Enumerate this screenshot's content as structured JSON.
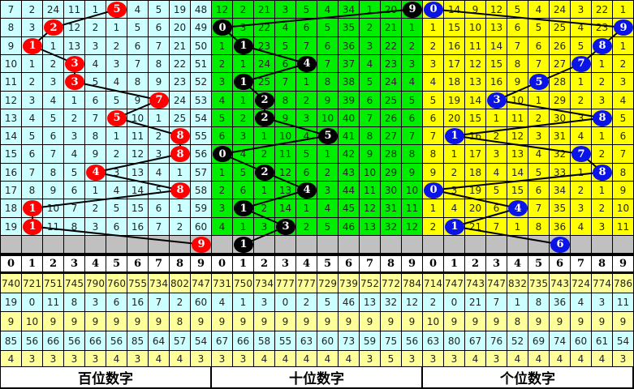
{
  "chart_data": {
    "type": "table",
    "header_digits": [
      "0",
      "1",
      "2",
      "3",
      "4",
      "5",
      "6",
      "7",
      "8",
      "9"
    ],
    "panels": [
      {
        "label": "百位数字",
        "bg": "#ccffff",
        "ball_color": "#ff0000",
        "rows": [
          [
            7,
            2,
            24,
            11,
            1,
            5,
            4,
            5,
            19,
            48
          ],
          [
            8,
            3,
            2,
            12,
            2,
            1,
            5,
            6,
            20,
            49
          ],
          [
            9,
            1,
            1,
            13,
            3,
            2,
            6,
            7,
            21,
            50
          ],
          [
            10,
            1,
            2,
            3,
            4,
            3,
            7,
            8,
            22,
            51
          ],
          [
            11,
            2,
            3,
            3,
            5,
            4,
            8,
            9,
            23,
            52
          ],
          [
            12,
            3,
            4,
            1,
            6,
            5,
            9,
            7,
            24,
            53
          ],
          [
            13,
            4,
            5,
            2,
            7,
            5,
            10,
            1,
            25,
            54
          ],
          [
            14,
            5,
            6,
            3,
            8,
            1,
            11,
            2,
            8,
            55
          ],
          [
            15,
            6,
            7,
            4,
            9,
            2,
            12,
            3,
            8,
            56
          ],
          [
            16,
            7,
            8,
            5,
            4,
            3,
            13,
            4,
            1,
            57
          ],
          [
            17,
            8,
            9,
            6,
            1,
            4,
            14,
            5,
            8,
            58
          ],
          [
            18,
            1,
            10,
            7,
            2,
            5,
            15,
            6,
            1,
            59
          ],
          [
            19,
            1,
            11,
            8,
            3,
            6,
            16,
            7,
            2,
            60
          ]
        ],
        "balls": [
          5,
          2,
          1,
          3,
          3,
          7,
          5,
          8,
          8,
          4,
          8,
          1,
          1
        ],
        "next_ball": 9,
        "stats": [
          [
            740,
            721,
            751,
            745,
            790,
            760,
            755,
            734,
            802,
            747
          ],
          [
            19,
            0,
            11,
            8,
            3,
            6,
            16,
            7,
            2,
            60
          ],
          [
            9,
            10,
            9,
            9,
            9,
            9,
            9,
            9,
            8,
            9
          ],
          [
            85,
            56,
            66,
            56,
            66,
            56,
            85,
            64,
            57,
            54
          ],
          [
            4,
            3,
            3,
            3,
            3,
            4,
            3,
            4,
            4,
            3
          ]
        ]
      },
      {
        "label": "十位数字",
        "bg": "#00ee00",
        "ball_color": "#000000",
        "rows": [
          [
            12,
            2,
            21,
            3,
            5,
            4,
            34,
            1,
            20,
            9
          ],
          [
            0,
            3,
            22,
            4,
            6,
            5,
            35,
            2,
            21,
            1
          ],
          [
            1,
            1,
            23,
            5,
            7,
            6,
            36,
            3,
            22,
            2
          ],
          [
            2,
            1,
            24,
            6,
            4,
            7,
            37,
            4,
            23,
            3
          ],
          [
            3,
            1,
            25,
            7,
            1,
            8,
            38,
            5,
            24,
            4
          ],
          [
            4,
            1,
            2,
            8,
            2,
            9,
            39,
            6,
            25,
            5
          ],
          [
            5,
            2,
            2,
            9,
            3,
            10,
            40,
            7,
            26,
            6
          ],
          [
            6,
            3,
            1,
            10,
            4,
            5,
            41,
            8,
            27,
            7
          ],
          [
            0,
            4,
            2,
            11,
            5,
            1,
            42,
            9,
            28,
            8
          ],
          [
            1,
            5,
            2,
            12,
            6,
            2,
            43,
            10,
            29,
            9
          ],
          [
            2,
            6,
            1,
            13,
            4,
            3,
            44,
            11,
            30,
            10
          ],
          [
            3,
            1,
            2,
            14,
            1,
            4,
            45,
            12,
            31,
            11
          ],
          [
            4,
            1,
            3,
            3,
            2,
            5,
            46,
            13,
            32,
            12
          ]
        ],
        "balls": [
          9,
          0,
          1,
          4,
          1,
          2,
          2,
          5,
          0,
          2,
          4,
          1,
          3
        ],
        "next_ball": 1,
        "stats": [
          [
            731,
            750,
            734,
            777,
            777,
            729,
            739,
            752,
            772,
            784
          ],
          [
            4,
            1,
            3,
            0,
            2,
            5,
            46,
            13,
            32,
            12
          ],
          [
            9,
            9,
            9,
            9,
            9,
            9,
            9,
            9,
            9,
            9
          ],
          [
            67,
            66,
            58,
            55,
            63,
            60,
            73,
            59,
            75,
            56
          ],
          [
            3,
            3,
            4,
            4,
            4,
            4,
            4,
            3,
            5,
            3
          ]
        ]
      },
      {
        "label": "个位数字",
        "bg": "#ffff00",
        "ball_color": "#0a14e6",
        "rows": [
          [
            0,
            14,
            9,
            12,
            5,
            4,
            24,
            3,
            22,
            1
          ],
          [
            1,
            15,
            10,
            13,
            6,
            5,
            25,
            4,
            23,
            9
          ],
          [
            2,
            16,
            11,
            14,
            7,
            6,
            26,
            5,
            8,
            1
          ],
          [
            3,
            17,
            12,
            15,
            8,
            7,
            27,
            7,
            1,
            2
          ],
          [
            4,
            18,
            13,
            16,
            9,
            5,
            28,
            1,
            2,
            3
          ],
          [
            5,
            19,
            14,
            3,
            10,
            1,
            29,
            2,
            3,
            4
          ],
          [
            6,
            20,
            15,
            1,
            11,
            2,
            30,
            3,
            8,
            5
          ],
          [
            7,
            1,
            16,
            2,
            12,
            3,
            31,
            4,
            1,
            6
          ],
          [
            8,
            1,
            17,
            3,
            13,
            4,
            32,
            7,
            2,
            7
          ],
          [
            9,
            2,
            18,
            4,
            14,
            5,
            33,
            1,
            8,
            8
          ],
          [
            0,
            3,
            19,
            5,
            15,
            6,
            34,
            2,
            1,
            9
          ],
          [
            1,
            4,
            20,
            6,
            4,
            7,
            35,
            3,
            2,
            10
          ],
          [
            2,
            1,
            21,
            7,
            1,
            8,
            36,
            4,
            3,
            11
          ]
        ],
        "balls": [
          0,
          9,
          8,
          7,
          5,
          3,
          8,
          1,
          7,
          8,
          0,
          4,
          1
        ],
        "next_ball": 6,
        "stats": [
          [
            714,
            747,
            743,
            747,
            832,
            735,
            743,
            724,
            774,
            786
          ],
          [
            2,
            0,
            21,
            7,
            1,
            8,
            36,
            4,
            3,
            11
          ],
          [
            10,
            9,
            9,
            9,
            8,
            9,
            9,
            9,
            9,
            9
          ],
          [
            63,
            80,
            67,
            76,
            52,
            69,
            74,
            60,
            61,
            54
          ],
          [
            3,
            3,
            4,
            3,
            4,
            4,
            4,
            4,
            4,
            3
          ]
        ]
      }
    ],
    "colors": {
      "gray_row": "#c0c0c0",
      "stats_yellow": "#ffff99",
      "stats_cyan": "#ccffff"
    }
  }
}
